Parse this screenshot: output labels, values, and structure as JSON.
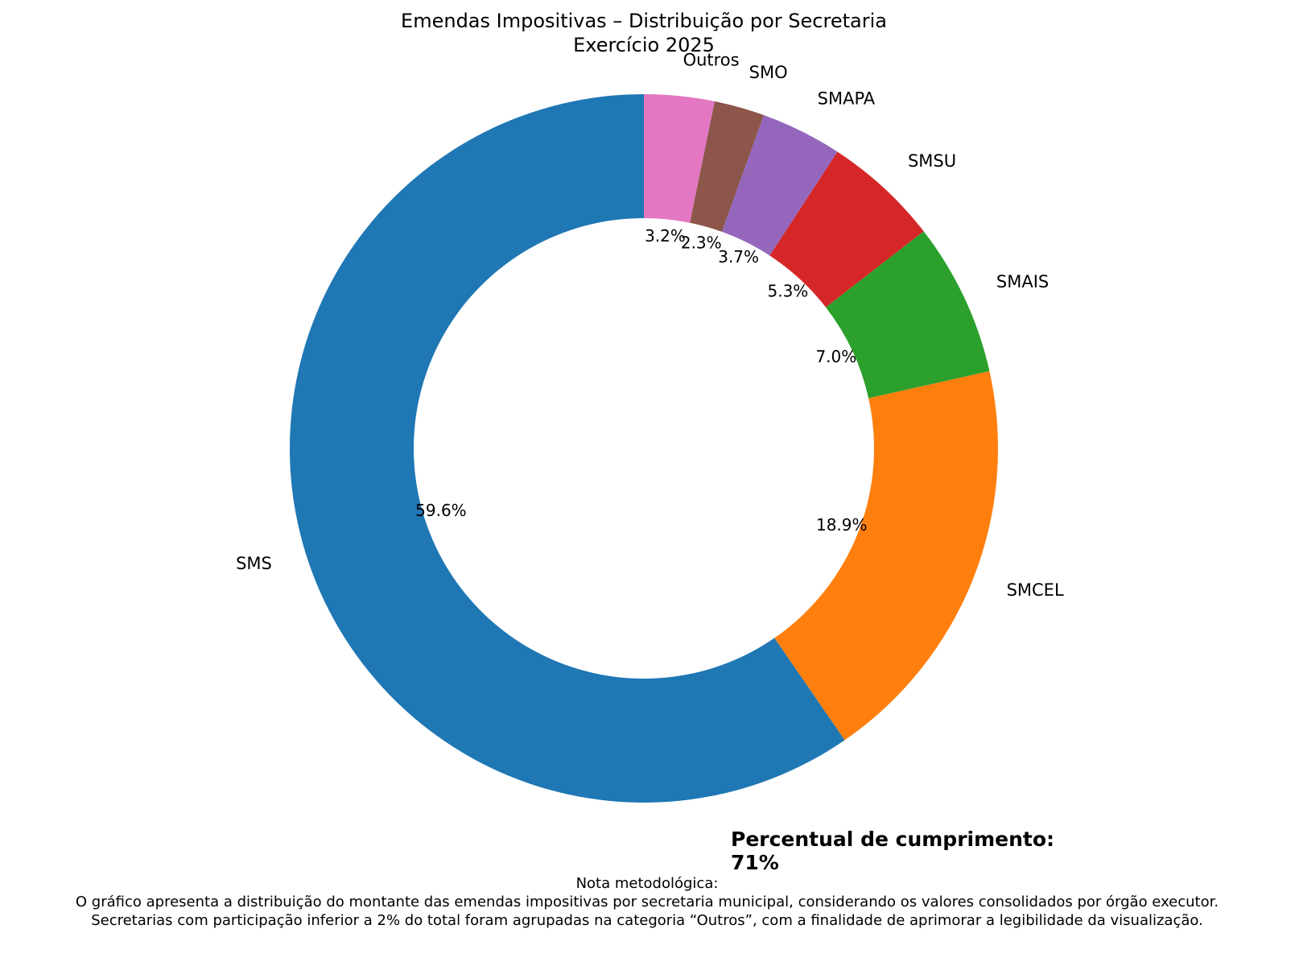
{
  "chart_data": {
    "type": "donut",
    "title": "Emendas Impositivas – Distribuição por Secretaria",
    "subtitle": "Exercício 2025",
    "categories": [
      "SMS",
      "SMCEL",
      "SMAIS",
      "SMSU",
      "SMAPA",
      "SMO",
      "Outros"
    ],
    "values": [
      59.6,
      18.9,
      7.0,
      5.3,
      3.7,
      2.3,
      3.2
    ],
    "value_labels": [
      "59.6%",
      "18.9%",
      "7.0%",
      "5.3%",
      "3.7%",
      "2.3%",
      "3.2%"
    ],
    "colors": [
      "#1f77b4",
      "#ff7f0e",
      "#2ca02c",
      "#d62728",
      "#9467bd",
      "#8c564b",
      "#e377c2"
    ],
    "start_angle": 90,
    "counterclockwise": true,
    "annotation": [
      "Percentual de cumprimento:",
      "71%"
    ],
    "footnote": [
      "Nota metodológica:",
      "O gráfico apresenta a distribuição do montante das emendas impositivas por secretaria municipal, considerando os valores consolidados por órgão executor.",
      "Secretarias com participação inferior a 2% do total foram agrupadas na categoria “Outros”, com a finalidade de aprimorar a legibilidade da visualização."
    ]
  }
}
